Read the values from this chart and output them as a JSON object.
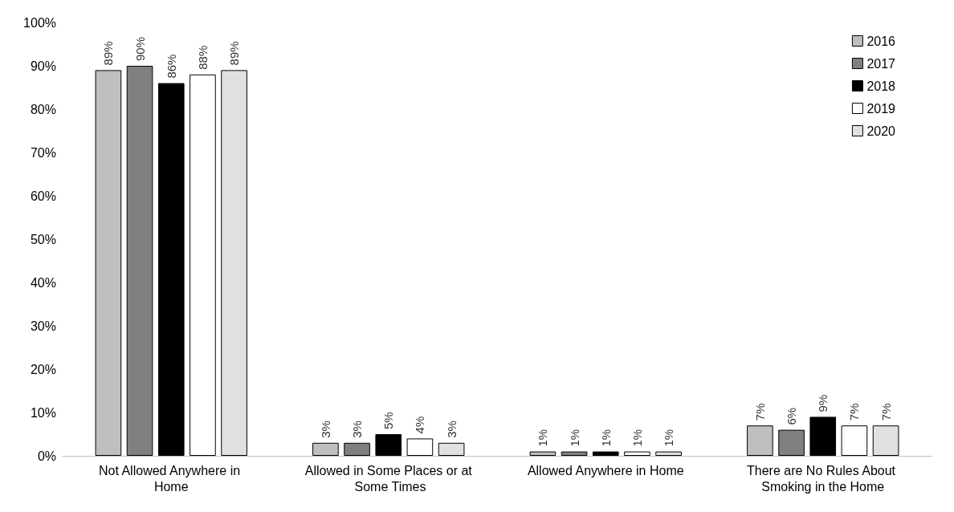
{
  "chart_data": {
    "type": "bar",
    "categories": [
      "Not Allowed Anywhere in Home",
      "Allowed in Some Places or at Some Times",
      "Allowed Anywhere in Home",
      "There are No Rules About Smoking in the Home"
    ],
    "series": [
      {
        "name": "2016",
        "color": "#bfbfbf",
        "values": [
          89,
          3,
          1,
          7
        ],
        "value_labels": [
          "89%",
          "3%",
          "1%",
          "7%"
        ]
      },
      {
        "name": "2017",
        "color": "#808080",
        "values": [
          90,
          3,
          1,
          6
        ],
        "value_labels": [
          "90%",
          "3%",
          "1%",
          "6%"
        ]
      },
      {
        "name": "2018",
        "color": "#000000",
        "values": [
          86,
          5,
          1,
          9
        ],
        "value_labels": [
          "86%",
          "5%",
          "1%",
          "9%"
        ]
      },
      {
        "name": "2019",
        "color": "#ffffff",
        "values": [
          88,
          4,
          1,
          7
        ],
        "value_labels": [
          "88%",
          "4%",
          "1%",
          "7%"
        ]
      },
      {
        "name": "2020",
        "color": "#e0e0e0",
        "values": [
          89,
          3,
          1,
          7
        ],
        "value_labels": [
          "89%",
          "3%",
          "1%",
          "7%"
        ]
      }
    ],
    "ylim": [
      0,
      100
    ],
    "yticks": [
      {
        "value": 0,
        "label": "0%"
      },
      {
        "value": 10,
        "label": "10%"
      },
      {
        "value": 20,
        "label": "20%"
      },
      {
        "value": 30,
        "label": "30%"
      },
      {
        "value": 40,
        "label": "40%"
      },
      {
        "value": 50,
        "label": "50%"
      },
      {
        "value": 60,
        "label": "60%"
      },
      {
        "value": 70,
        "label": "70%"
      },
      {
        "value": 80,
        "label": "80%"
      },
      {
        "value": 90,
        "label": "90%"
      },
      {
        "value": 100,
        "label": "100%"
      }
    ],
    "grid": false,
    "legend": "top right"
  }
}
